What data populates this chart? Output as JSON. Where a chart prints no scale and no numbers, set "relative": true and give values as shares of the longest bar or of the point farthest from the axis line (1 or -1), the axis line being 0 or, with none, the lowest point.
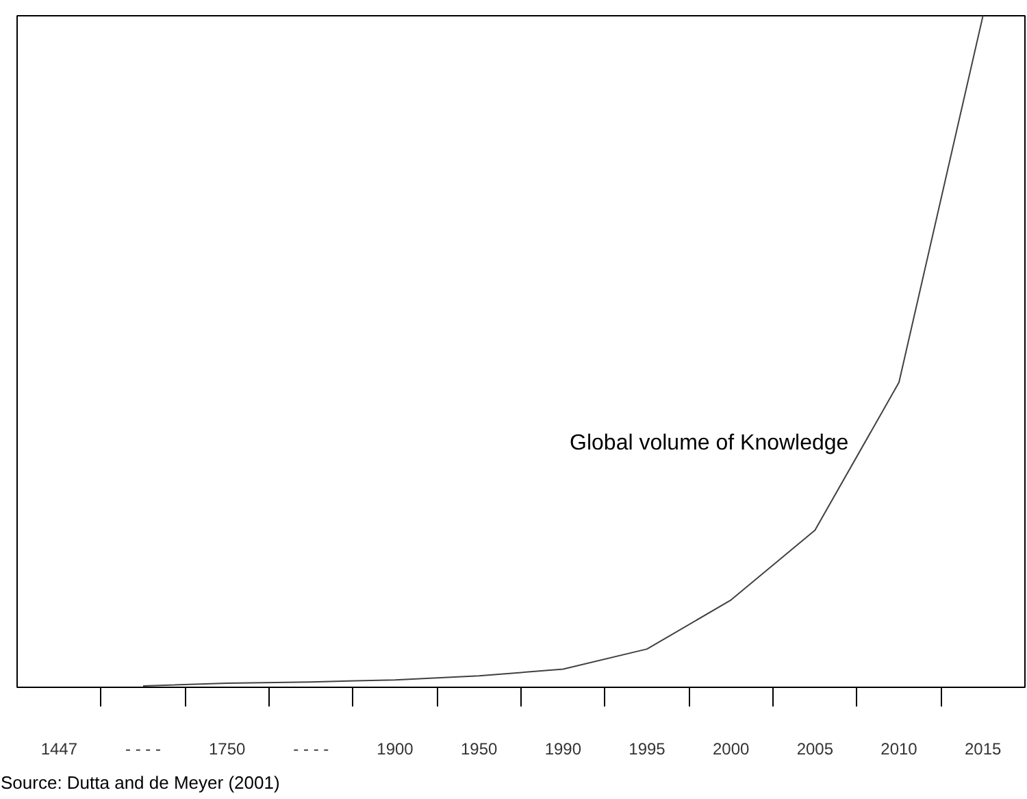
{
  "chart_data": {
    "type": "line",
    "relative": true,
    "categories": [
      "1447",
      "- - - -",
      "1750",
      "- - - -",
      "1900",
      "1950",
      "1990",
      "1995",
      "2000",
      "2005",
      "2010",
      "2015"
    ],
    "series": [
      {
        "name": "Global volume of Knowledge",
        "color": "#404040",
        "values": [
          null,
          0.002,
          0.006,
          0.008,
          0.011,
          0.017,
          0.027,
          0.057,
          0.13,
          0.234,
          0.454,
          1.0
        ]
      }
    ],
    "annotations": [
      "Source: Dutta and de Meyer (2001)"
    ],
    "grid": false,
    "marker": "none",
    "line_style": "solid"
  }
}
